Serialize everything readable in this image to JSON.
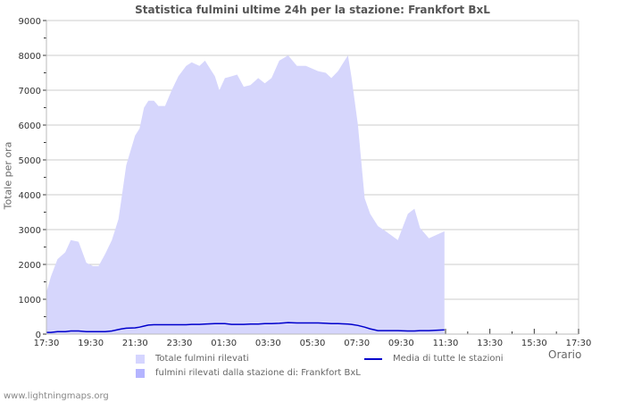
{
  "title": "Statistica fulmini ultime 24h per la stazione: Frankfort BxL",
  "ylabel": "Totale per ora",
  "xlabel": "Orario",
  "footer": "www.lightningmaps.org",
  "legend": {
    "total": "Totale fulmini rilevati",
    "station": "fulmini rilevati dalla stazione di: Frankfort BxL",
    "average": "Media di tutte le stazioni"
  },
  "colors": {
    "total_fill": "#d6d6fc",
    "total_legend": "#d5d5ff",
    "station_legend": "#b4b4ff",
    "average_line": "#0000cc",
    "grid": "#cccccc"
  },
  "chart_data": {
    "type": "area",
    "title": "Statistica fulmini ultime 24h per la stazione: Frankfort BxL",
    "xlabel": "Orario",
    "ylabel": "Totale per ora",
    "ylim": [
      0,
      9000
    ],
    "yticks": [
      0,
      1000,
      2000,
      3000,
      4000,
      5000,
      6000,
      7000,
      8000,
      9000
    ],
    "xticks": [
      "17:30",
      "19:30",
      "21:30",
      "23:30",
      "01:30",
      "03:30",
      "05:30",
      "07:30",
      "09:30",
      "11:30",
      "13:30",
      "15:30",
      "17:30"
    ],
    "grid": true,
    "legend_position": "bottom",
    "x_hours": [
      0,
      0.2,
      0.5,
      0.85,
      1.1,
      1.45,
      1.8,
      2.1,
      2.35,
      2.65,
      2.95,
      3.25,
      3.4,
      3.6,
      4.0,
      4.2,
      4.4,
      4.6,
      4.85,
      5.05,
      5.35,
      5.65,
      5.95,
      6.3,
      6.55,
      6.9,
      7.15,
      7.6,
      7.8,
      8.05,
      8.35,
      8.6,
      8.9,
      9.2,
      9.55,
      9.85,
      10.15,
      10.5,
      10.9,
      11.3,
      11.7,
      12.25,
      12.6,
      12.85,
      13.15,
      13.6,
      13.75,
      14.05,
      14.35,
      14.6,
      14.95,
      15.3,
      15.85,
      16.3,
      16.6,
      16.85,
      17.25,
      17.95
    ],
    "series": [
      {
        "name": "Totale fulmini rilevati",
        "values": [
          1200,
          1650,
          2150,
          2350,
          2700,
          2650,
          2050,
          1950,
          1950,
          2300,
          2700,
          3300,
          3950,
          4850,
          5700,
          5900,
          6500,
          6700,
          6700,
          6550,
          6550,
          7000,
          7400,
          7700,
          7800,
          7700,
          7850,
          7400,
          7000,
          7350,
          7400,
          7450,
          7100,
          7150,
          7350,
          7200,
          7350,
          7850,
          8000,
          7700,
          7700,
          7550,
          7500,
          7350,
          7550,
          8000,
          7400,
          6000,
          3900,
          3450,
          3100,
          2950,
          2700,
          3450,
          3600,
          3050,
          2750,
          2950
        ]
      },
      {
        "name": "Media di tutte le stazioni",
        "values": [
          50,
          50,
          70,
          70,
          90,
          90,
          70,
          70,
          70,
          70,
          90,
          130,
          150,
          170,
          180,
          200,
          230,
          260,
          270,
          270,
          270,
          270,
          270,
          270,
          280,
          280,
          290,
          300,
          300,
          300,
          280,
          280,
          280,
          290,
          290,
          300,
          300,
          310,
          330,
          320,
          320,
          320,
          310,
          300,
          300,
          290,
          280,
          250,
          200,
          150,
          100,
          100,
          100,
          90,
          90,
          100,
          100,
          120
        ]
      }
    ]
  }
}
